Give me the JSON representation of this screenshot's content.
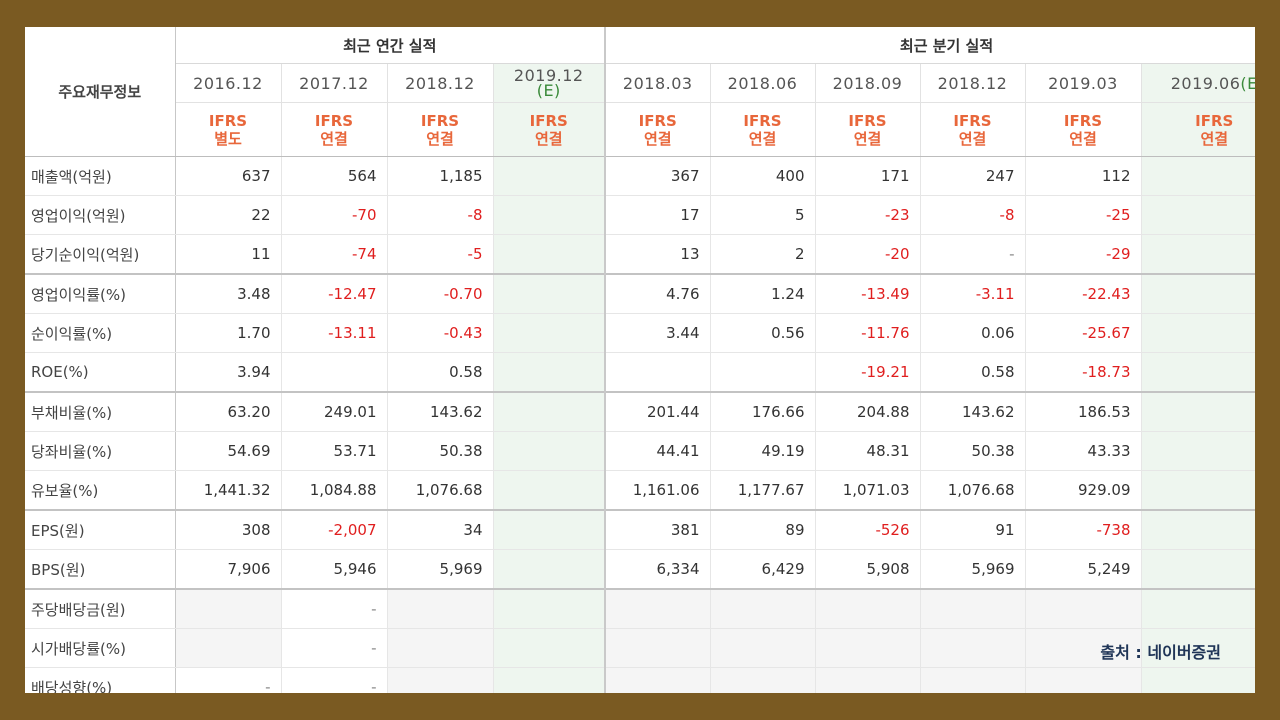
{
  "header": {
    "row_title": "주요재무정보",
    "annual_title": "최근 연간 실적",
    "quarter_title": "최근 분기 실적"
  },
  "columns": [
    {
      "date": "2016.12",
      "std1": "IFRS",
      "std2": "별도"
    },
    {
      "date": "2017.12",
      "std1": "IFRS",
      "std2": "연결"
    },
    {
      "date": "2018.12",
      "std1": "IFRS",
      "std2": "연결"
    },
    {
      "date": "2019.12",
      "est": "(E)",
      "std1": "IFRS",
      "std2": "연결"
    },
    {
      "date": "2018.03",
      "std1": "IFRS",
      "std2": "연결"
    },
    {
      "date": "2018.06",
      "std1": "IFRS",
      "std2": "연결"
    },
    {
      "date": "2018.09",
      "std1": "IFRS",
      "std2": "연결"
    },
    {
      "date": "2018.12",
      "std1": "IFRS",
      "std2": "연결"
    },
    {
      "date": "2019.03",
      "std1": "IFRS",
      "std2": "연결"
    },
    {
      "date": "2019.06",
      "est": "(E",
      "std1": "IFRS",
      "std2": "연결"
    }
  ],
  "rows": [
    {
      "label": "매출액(억원)",
      "values": [
        "637",
        "564",
        "1,185",
        "",
        "367",
        "400",
        "171",
        "247",
        "112",
        ""
      ]
    },
    {
      "label": "영업이익(억원)",
      "values": [
        "22",
        "-70",
        "-8",
        "",
        "17",
        "5",
        "-23",
        "-8",
        "-25",
        ""
      ]
    },
    {
      "label": "당기순이익(억원)",
      "values": [
        "11",
        "-74",
        "-5",
        "",
        "13",
        "2",
        "-20",
        "-",
        "-29",
        ""
      ]
    },
    {
      "label": "영업이익률(%)",
      "values": [
        "3.48",
        "-12.47",
        "-0.70",
        "",
        "4.76",
        "1.24",
        "-13.49",
        "-3.11",
        "-22.43",
        ""
      ]
    },
    {
      "label": "순이익률(%)",
      "values": [
        "1.70",
        "-13.11",
        "-0.43",
        "",
        "3.44",
        "0.56",
        "-11.76",
        "0.06",
        "-25.67",
        ""
      ]
    },
    {
      "label": "ROE(%)",
      "values": [
        "3.94",
        "",
        "0.58",
        "",
        "",
        "",
        "-19.21",
        "0.58",
        "-18.73",
        ""
      ]
    },
    {
      "label": "부채비율(%)",
      "values": [
        "63.20",
        "249.01",
        "143.62",
        "",
        "201.44",
        "176.66",
        "204.88",
        "143.62",
        "186.53",
        ""
      ]
    },
    {
      "label": "당좌비율(%)",
      "values": [
        "54.69",
        "53.71",
        "50.38",
        "",
        "44.41",
        "49.19",
        "48.31",
        "50.38",
        "43.33",
        ""
      ]
    },
    {
      "label": "유보율(%)",
      "values": [
        "1,441.32",
        "1,084.88",
        "1,076.68",
        "",
        "1,161.06",
        "1,177.67",
        "1,071.03",
        "1,076.68",
        "929.09",
        ""
      ]
    },
    {
      "label": "EPS(원)",
      "values": [
        "308",
        "-2,007",
        "34",
        "",
        "381",
        "89",
        "-526",
        "91",
        "-738",
        ""
      ]
    },
    {
      "label": "BPS(원)",
      "values": [
        "7,906",
        "5,946",
        "5,969",
        "",
        "6,334",
        "6,429",
        "5,908",
        "5,969",
        "5,249",
        ""
      ]
    },
    {
      "label": "주당배당금(원)",
      "values": [
        "",
        "-",
        "",
        "",
        "",
        "",
        "",
        "",
        "",
        ""
      ]
    },
    {
      "label": "시가배당률(%)",
      "values": [
        "",
        "-",
        "",
        "",
        "",
        "",
        "",
        "",
        "",
        ""
      ]
    },
    {
      "label": "배당성향(%)",
      "values": [
        "-",
        "-",
        "",
        "",
        "",
        "",
        "",
        "",
        "",
        ""
      ]
    }
  ],
  "source_note": "출처 : 네이버증권",
  "colors": {
    "border": "#7a5a22",
    "negative": "#e01e1e",
    "standard": "#e8673b",
    "estimate_bg": "#eef6ef"
  }
}
